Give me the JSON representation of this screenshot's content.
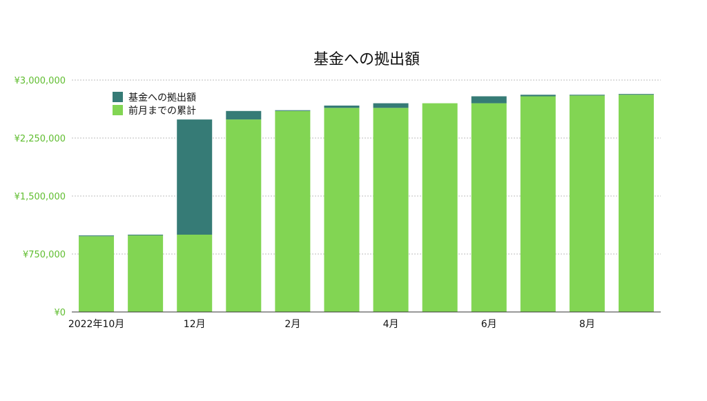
{
  "chart_data": {
    "type": "bar",
    "stacked": true,
    "title": "基金への拠出額",
    "xlabel": "",
    "ylabel": "",
    "categories": [
      "2022-10",
      "2022-11",
      "2022-12",
      "2023-01",
      "2023-02",
      "2023-03",
      "2023-04",
      "2023-05",
      "2023-06",
      "2023-07",
      "2023-08",
      "2023-09"
    ],
    "x_tick_labels": [
      {
        "category": "2022-10",
        "label": "2022年10月"
      },
      {
        "category": "2022-12",
        "label": "12月"
      },
      {
        "category": "2023-02",
        "label": "2月"
      },
      {
        "category": "2023-04",
        "label": "4月"
      },
      {
        "category": "2023-06",
        "label": "6月"
      },
      {
        "category": "2023-08",
        "label": "8月"
      }
    ],
    "ylim": [
      0,
      3000000
    ],
    "y_ticks": [
      0,
      750000,
      1500000,
      2250000,
      3000000
    ],
    "y_tick_labels": [
      "¥0",
      "¥750,000",
      "¥1,500,000",
      "¥2,250,000",
      "¥3,000,000"
    ],
    "grid": true,
    "legend_position": "top-left",
    "series": [
      {
        "name": "前月までの累計",
        "color": "#82d553",
        "values": [
          980000,
          990000,
          1000000,
          2490000,
          2600000,
          2640000,
          2640000,
          2700000,
          2700000,
          2790000,
          2800000,
          2810000
        ]
      },
      {
        "name": "基金への拠出額",
        "color": "#367b76",
        "values": [
          10000,
          10000,
          1490000,
          110000,
          10000,
          30000,
          60000,
          0,
          90000,
          20000,
          10000,
          10000
        ]
      }
    ],
    "legend_order": [
      "基金への拠出額",
      "前月までの累計"
    ]
  },
  "colors": {
    "accent_green": "#5fbd2f",
    "grid": "#bbbbbb",
    "axis": "#333333"
  }
}
